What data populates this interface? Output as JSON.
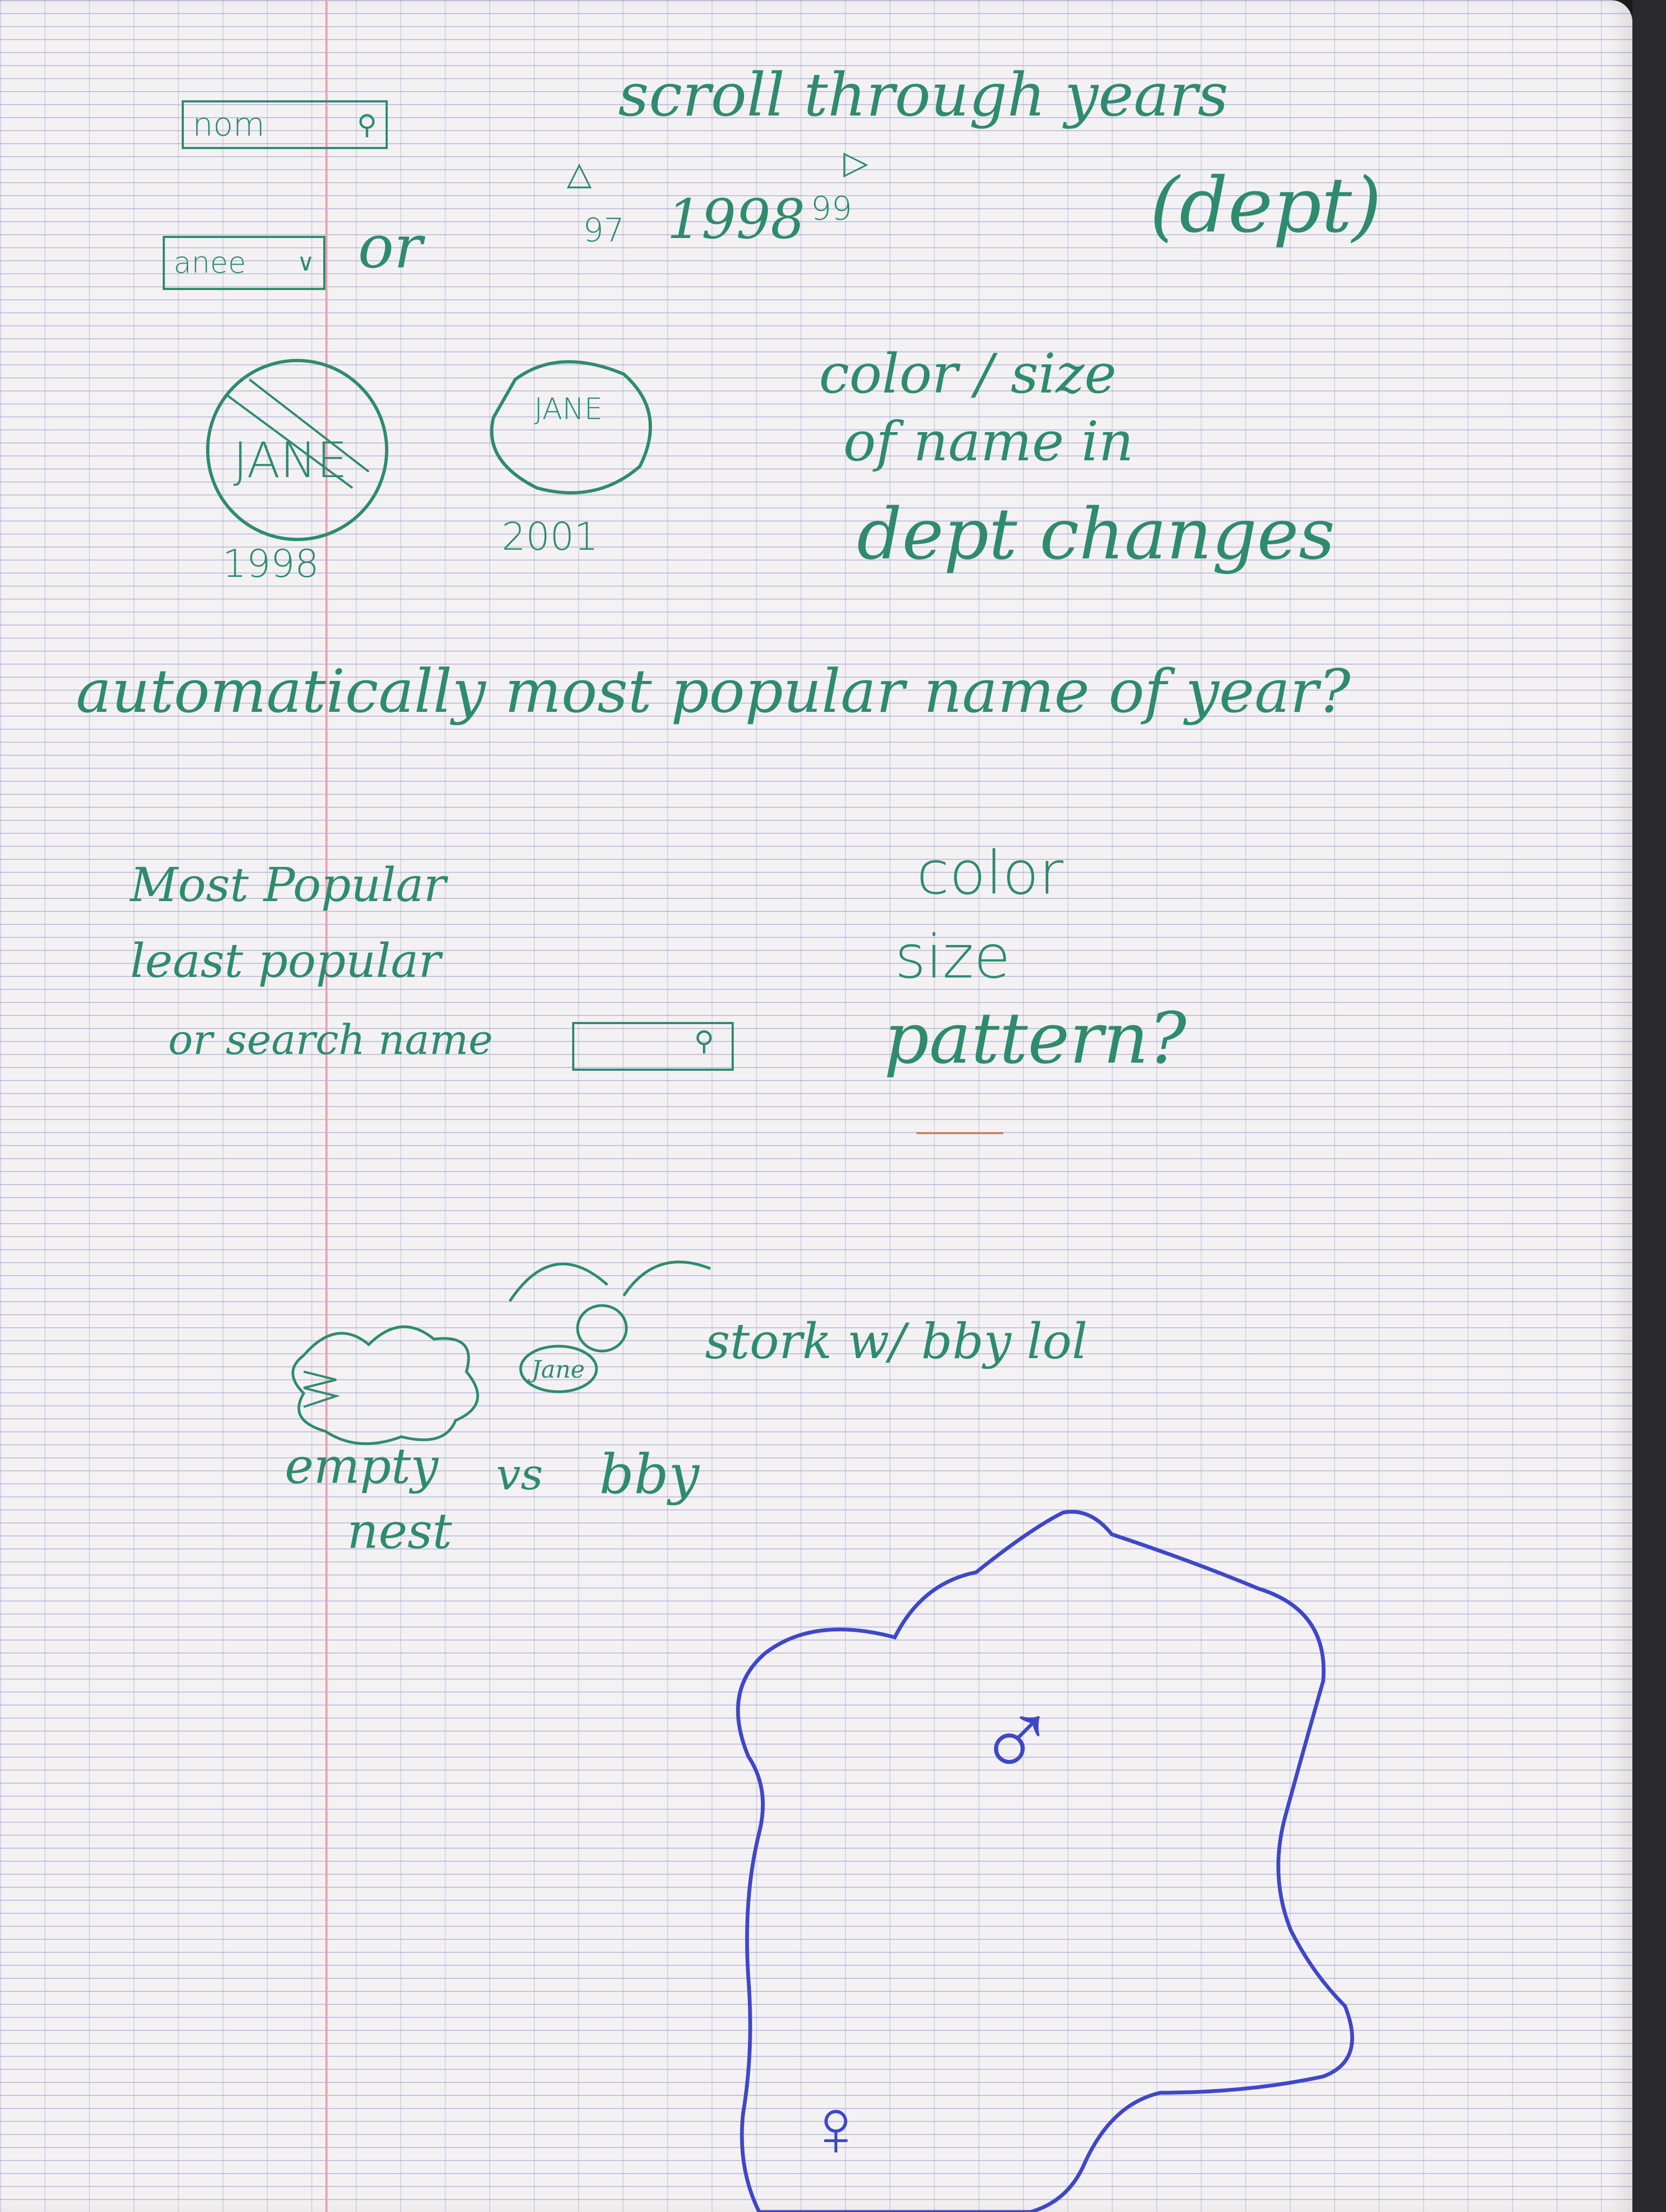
{
  "colors": {
    "paper": "#f3f1f2",
    "green_ink": "#2e8b6e",
    "blue_ink": "#3f47c9",
    "margin": "#e9a3ad"
  },
  "header": {
    "title": "scroll through years",
    "search_box": "nom",
    "search_icon": "magnifier-icon",
    "select_box": "anee",
    "select_icon": "chevron-down-icon",
    "or_label": "or",
    "years": {
      "prev": "97",
      "current": "1998",
      "next": "99"
    },
    "dept_label": "(dept)"
  },
  "bubbles": [
    {
      "name": "JANE",
      "year": "1998"
    },
    {
      "name": "JANE",
      "year": "2001"
    }
  ],
  "bubble_note": [
    "color / size",
    "of name in",
    "dept changes"
  ],
  "question": "automatically most popular name of year?",
  "options": [
    "Most Popular",
    "least popular",
    "or search name"
  ],
  "options_search_icon": "magnifier-icon",
  "encodings": [
    "color",
    "size",
    "pattern?"
  ],
  "stork_note": "stork w/ bby lol",
  "stork_baby": "Jane",
  "empty_nest": {
    "line1": "empty",
    "line2": "nest",
    "vs": "vs",
    "bby": "bby"
  },
  "map_symbols": {
    "male": "♂",
    "female": "♀"
  }
}
